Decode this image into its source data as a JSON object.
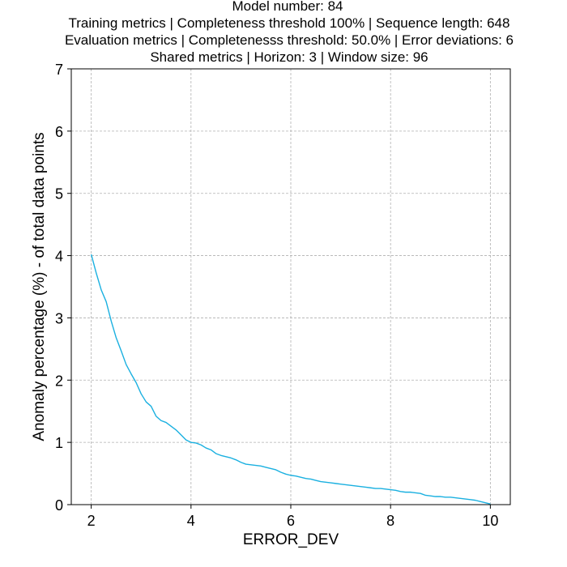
{
  "chart_data": {
    "type": "line",
    "title_lines": [
      "Model number: 84",
      "Training metrics | Completeness threshold 100% | Sequence length: 648",
      "Evaluation metrics | Completenesss threshold: 50.0% | Error deviations: 6",
      "Shared metrics | Horizon: 3 | Window size: 96"
    ],
    "xlabel": "ERROR_DEV",
    "ylabel": "Anomaly percentage (%) - of total data points",
    "xlim": [
      1.6,
      10.4
    ],
    "ylim": [
      0,
      7
    ],
    "xticks": [
      2,
      4,
      6,
      8,
      10
    ],
    "yticks": [
      0,
      1,
      2,
      3,
      4,
      5,
      6,
      7
    ],
    "grid": true,
    "series": [
      {
        "color": "#1ab0e0",
        "x": [
          2.0,
          2.1,
          2.2,
          2.3,
          2.4,
          2.5,
          2.6,
          2.7,
          2.8,
          2.9,
          3.0,
          3.1,
          3.2,
          3.3,
          3.4,
          3.5,
          3.6,
          3.7,
          3.8,
          3.9,
          4.0,
          4.1,
          4.2,
          4.3,
          4.4,
          4.5,
          4.6,
          4.7,
          4.8,
          4.9,
          5.0,
          5.1,
          5.2,
          5.3,
          5.4,
          5.5,
          5.6,
          5.7,
          5.8,
          5.9,
          6.0,
          6.1,
          6.2,
          6.3,
          6.4,
          6.5,
          6.6,
          6.7,
          6.8,
          6.9,
          7.0,
          7.1,
          7.2,
          7.3,
          7.4,
          7.5,
          7.6,
          7.7,
          7.8,
          7.9,
          8.0,
          8.1,
          8.2,
          8.3,
          8.4,
          8.5,
          8.6,
          8.7,
          8.8,
          8.9,
          9.0,
          9.1,
          9.2,
          9.3,
          9.4,
          9.5,
          9.6,
          9.7,
          9.8,
          9.9,
          10.0
        ],
        "y": [
          4.02,
          3.72,
          3.45,
          3.26,
          2.95,
          2.68,
          2.47,
          2.25,
          2.1,
          1.96,
          1.78,
          1.65,
          1.58,
          1.42,
          1.35,
          1.32,
          1.26,
          1.2,
          1.12,
          1.04,
          1.0,
          0.99,
          0.96,
          0.91,
          0.88,
          0.82,
          0.79,
          0.77,
          0.75,
          0.72,
          0.68,
          0.65,
          0.64,
          0.63,
          0.62,
          0.6,
          0.58,
          0.56,
          0.52,
          0.49,
          0.47,
          0.46,
          0.44,
          0.42,
          0.41,
          0.39,
          0.37,
          0.36,
          0.35,
          0.34,
          0.33,
          0.32,
          0.31,
          0.3,
          0.29,
          0.28,
          0.27,
          0.26,
          0.26,
          0.25,
          0.24,
          0.23,
          0.21,
          0.2,
          0.2,
          0.19,
          0.18,
          0.15,
          0.14,
          0.13,
          0.13,
          0.12,
          0.12,
          0.11,
          0.1,
          0.09,
          0.08,
          0.07,
          0.05,
          0.03,
          0.01
        ]
      }
    ]
  }
}
